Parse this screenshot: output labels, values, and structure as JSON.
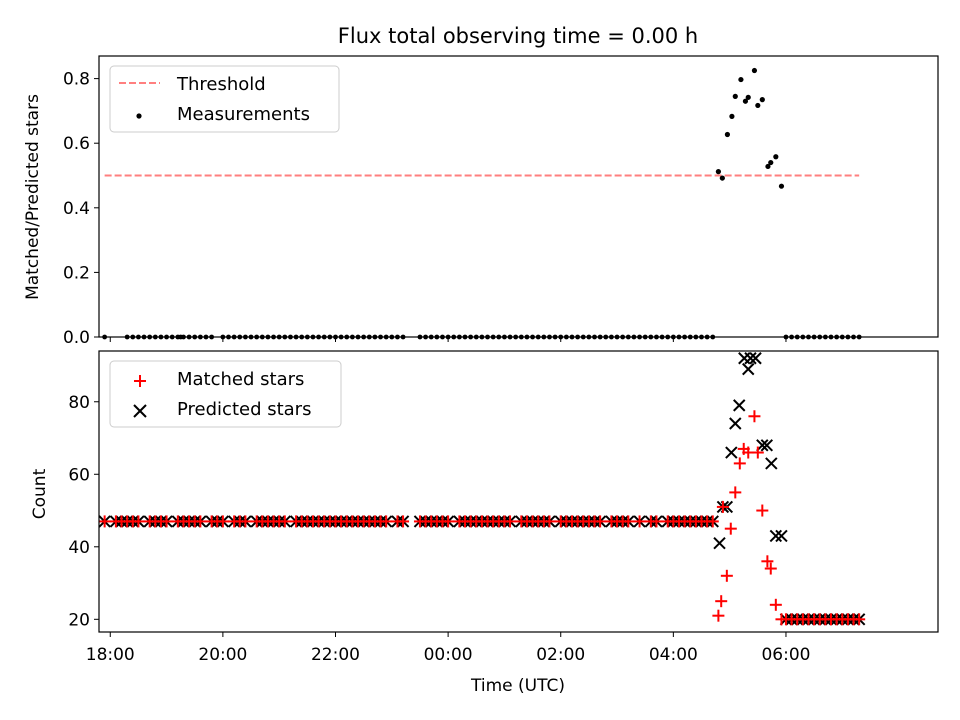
{
  "chart_data": [
    {
      "type": "scatter",
      "title": "Flux total observing time = 0.00 h",
      "xlabel": "",
      "ylabel": "Matched/Predicted stars",
      "xlim": [
        -6.2,
        8.7
      ],
      "ylim": [
        0.0,
        0.87
      ],
      "yticks": [
        0.0,
        0.2,
        0.4,
        0.6,
        0.8
      ],
      "ytick_labels": [
        "0.0",
        "0.2",
        "0.4",
        "0.6",
        "0.8"
      ],
      "legend_position": "top-left",
      "threshold": {
        "name": "Threshold",
        "color": "#ff7f7f",
        "value": 0.5,
        "x_range": [
          -6.1,
          7.3
        ]
      },
      "measurements": {
        "name": "Measurements",
        "color": "#000000",
        "zero_points": [
          -6.1,
          -5.7,
          -5.6,
          -5.5,
          -5.4,
          -5.3,
          -5.2,
          -5.1,
          -5.0,
          -4.9,
          -4.8,
          -4.75,
          -4.7,
          -4.6,
          -4.5,
          -4.4,
          -4.3,
          -4.2,
          -4.0,
          -3.9,
          -3.8,
          -3.7,
          -3.6,
          -3.5,
          -3.4,
          -3.3,
          -3.2,
          -3.1,
          -3.0,
          -2.9,
          -2.8,
          -2.7,
          -2.6,
          -2.5,
          -2.4,
          -2.3,
          -2.2,
          -2.1,
          -2.0,
          -1.9,
          -1.8,
          -1.7,
          -1.6,
          -1.5,
          -1.4,
          -1.3,
          -1.2,
          -1.1,
          -1.0,
          -0.9,
          -0.8,
          -0.5,
          -0.4,
          -0.3,
          -0.2,
          -0.1,
          0.0,
          0.1,
          0.2,
          0.3,
          0.4,
          0.5,
          0.6,
          0.7,
          0.8,
          0.9,
          1.0,
          1.1,
          1.2,
          1.3,
          1.4,
          1.5,
          1.6,
          1.7,
          1.8,
          1.9,
          2.0,
          2.1,
          2.2,
          2.3,
          2.4,
          2.5,
          2.6,
          2.7,
          2.8,
          2.9,
          3.0,
          3.1,
          3.2,
          3.3,
          3.4,
          3.5,
          3.6,
          3.7,
          3.8,
          3.9,
          4.0,
          4.1,
          4.2,
          4.3,
          4.4,
          4.5,
          4.6,
          4.7,
          6.0,
          6.1,
          6.2,
          6.3,
          6.4,
          6.5,
          6.6,
          6.7,
          6.8,
          6.9,
          7.0,
          7.1,
          7.2,
          7.3
        ],
        "points": [
          [
            4.8,
            0.512
          ],
          [
            4.87,
            0.492
          ],
          [
            4.96,
            0.627
          ],
          [
            5.04,
            0.683
          ],
          [
            5.1,
            0.745
          ],
          [
            5.2,
            0.797
          ],
          [
            5.28,
            0.73
          ],
          [
            5.33,
            0.742
          ],
          [
            5.44,
            0.825
          ],
          [
            5.5,
            0.717
          ],
          [
            5.58,
            0.735
          ],
          [
            5.68,
            0.528
          ],
          [
            5.73,
            0.54
          ],
          [
            5.82,
            0.558
          ],
          [
            5.92,
            0.467
          ]
        ]
      }
    },
    {
      "type": "scatter",
      "title": "",
      "xlabel": "Time (UTC)",
      "ylabel": "Count",
      "xlim": [
        -6.2,
        8.7
      ],
      "ylim": [
        16.5,
        94.0
      ],
      "yticks": [
        20,
        40,
        60,
        80
      ],
      "ytick_labels": [
        "20",
        "40",
        "60",
        "80"
      ],
      "xticks": [
        -6,
        -4,
        -2,
        0,
        2,
        4,
        6
      ],
      "xtick_labels": [
        "18:00",
        "20:00",
        "22:00",
        "00:00",
        "02:00",
        "04:00",
        "06:00"
      ],
      "legend_position": "top-left",
      "matched": {
        "name": "Matched stars",
        "color": "#ff0000",
        "base_value": 47,
        "base_x": [
          -6.1,
          -5.9,
          -5.8,
          -5.7,
          -5.6,
          -5.5,
          -5.3,
          -5.2,
          -5.1,
          -5.0,
          -4.8,
          -4.7,
          -4.6,
          -4.5,
          -4.4,
          -4.2,
          -4.1,
          -4.0,
          -3.8,
          -3.7,
          -3.6,
          -3.4,
          -3.3,
          -3.2,
          -3.1,
          -3.0,
          -2.9,
          -2.7,
          -2.6,
          -2.5,
          -2.4,
          -2.3,
          -2.2,
          -2.1,
          -2.0,
          -1.9,
          -1.8,
          -1.7,
          -1.6,
          -1.5,
          -1.4,
          -1.3,
          -1.2,
          -1.1,
          -0.9,
          -0.8,
          -0.5,
          -0.4,
          -0.3,
          -0.2,
          -0.1,
          0.0,
          0.2,
          0.3,
          0.4,
          0.5,
          0.6,
          0.7,
          0.8,
          0.9,
          1.0,
          1.1,
          1.3,
          1.4,
          1.5,
          1.6,
          1.7,
          1.8,
          2.0,
          2.1,
          2.2,
          2.3,
          2.4,
          2.5,
          2.6,
          2.7,
          2.9,
          3.0,
          3.1,
          3.2,
          3.4,
          3.6,
          3.7,
          3.9,
          4.0,
          4.1,
          4.2,
          4.3,
          4.4,
          4.5,
          4.6,
          4.7
        ],
        "peak_points": [
          [
            4.8,
            21
          ],
          [
            4.85,
            25
          ],
          [
            4.88,
            51
          ],
          [
            4.95,
            32
          ],
          [
            5.02,
            45
          ],
          [
            5.1,
            55
          ],
          [
            5.18,
            63
          ],
          [
            5.25,
            67
          ],
          [
            5.33,
            66
          ],
          [
            5.44,
            76
          ],
          [
            5.5,
            66
          ],
          [
            5.58,
            50
          ],
          [
            5.67,
            36
          ],
          [
            5.73,
            34
          ],
          [
            5.82,
            24
          ],
          [
            5.92,
            20
          ]
        ],
        "tail_value": 20,
        "tail_x": [
          6.0,
          6.1,
          6.2,
          6.3,
          6.4,
          6.5,
          6.6,
          6.7,
          6.8,
          6.9,
          7.0,
          7.1,
          7.2,
          7.3
        ]
      },
      "predicted": {
        "name": "Predicted stars",
        "color": "#000000",
        "points": [
          [
            4.82,
            41
          ],
          [
            4.88,
            51
          ],
          [
            4.95,
            51
          ],
          [
            5.03,
            66
          ],
          [
            5.1,
            74
          ],
          [
            5.17,
            79
          ],
          [
            5.26,
            92
          ],
          [
            5.33,
            89
          ],
          [
            5.37,
            92
          ],
          [
            5.46,
            92
          ],
          [
            5.58,
            68
          ],
          [
            5.66,
            68
          ],
          [
            5.74,
            63
          ],
          [
            5.82,
            43
          ],
          [
            5.92,
            43
          ]
        ]
      }
    }
  ]
}
